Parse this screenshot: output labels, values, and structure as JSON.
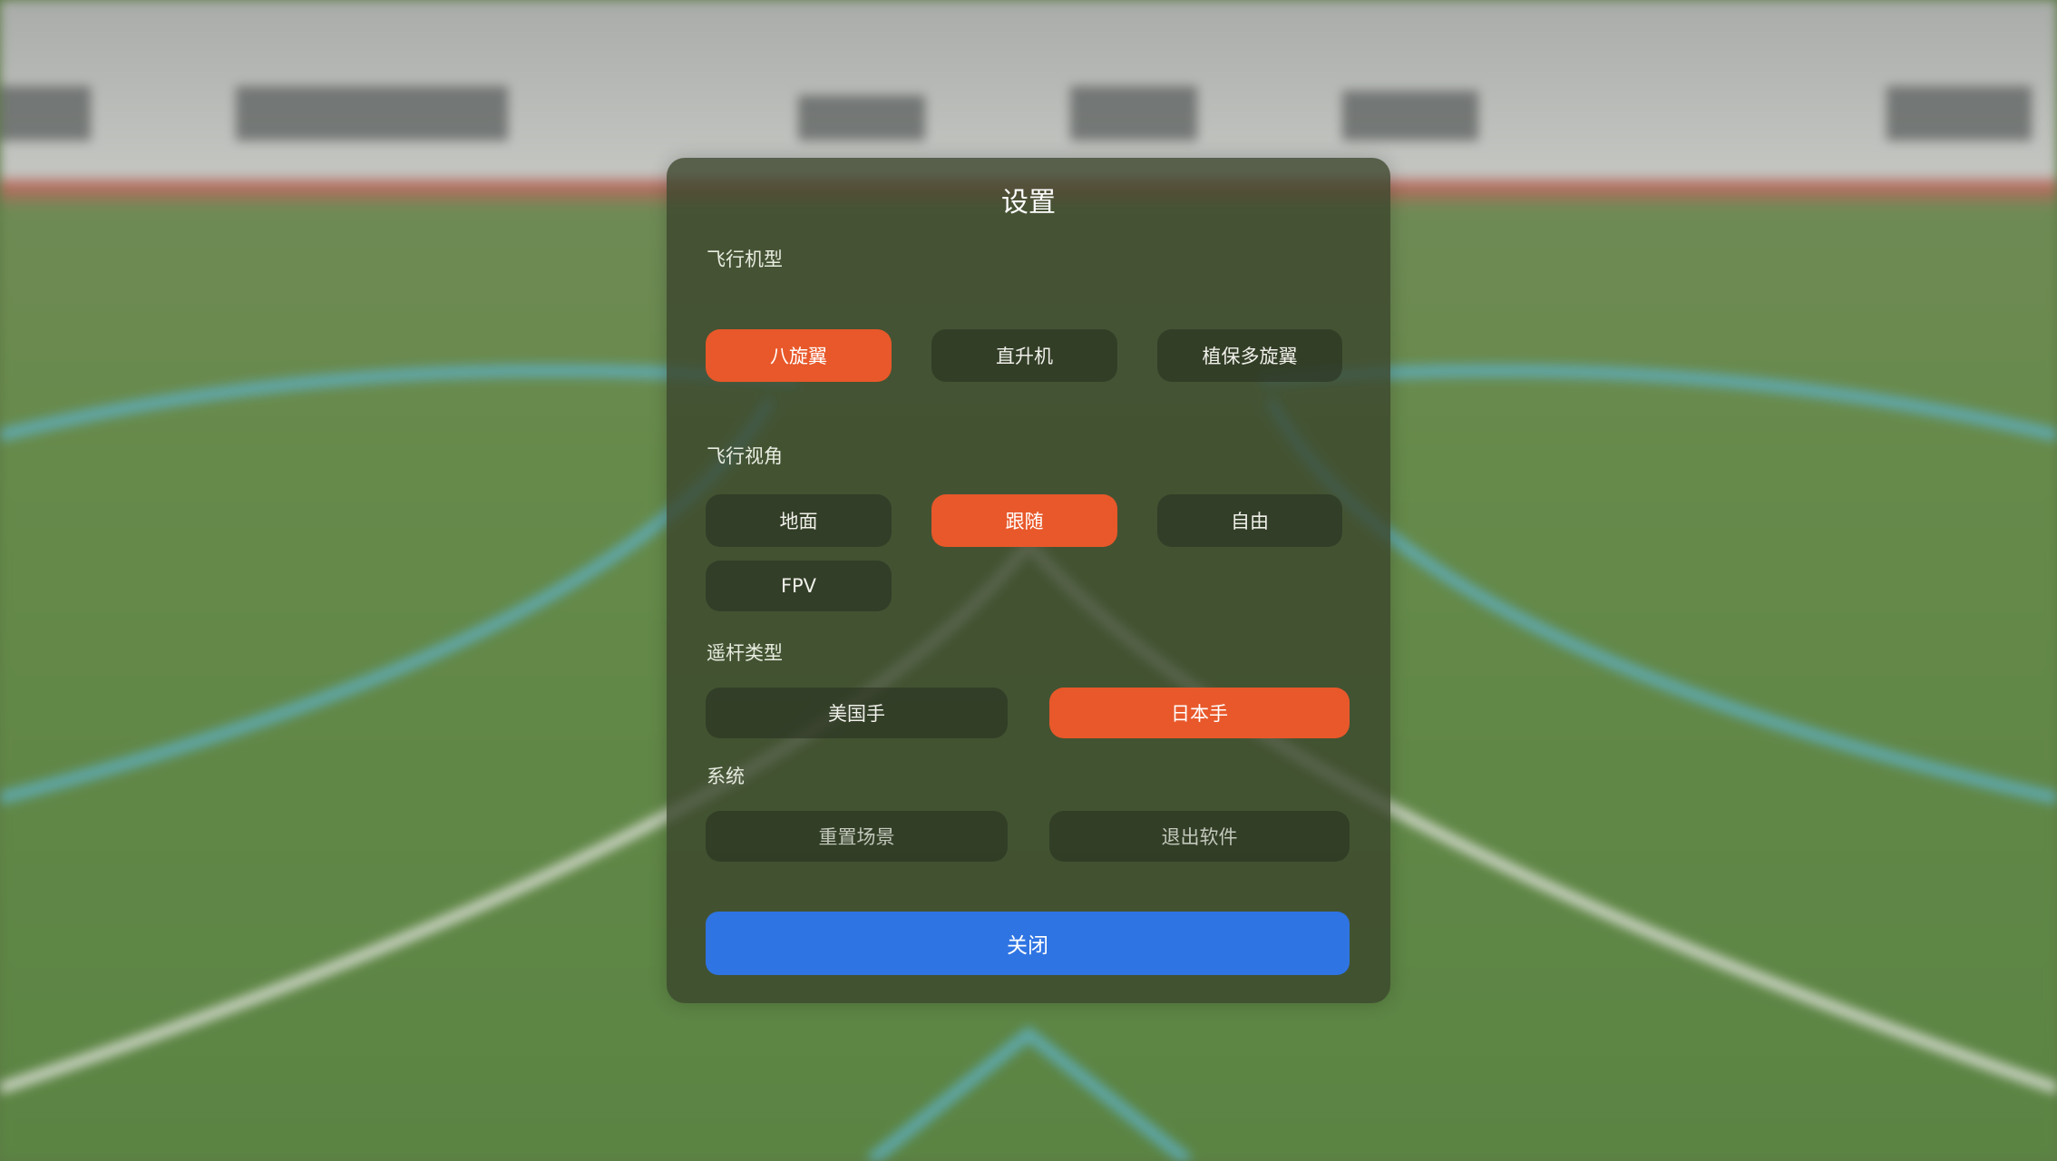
{
  "dialog": {
    "title": "设置",
    "sections": [
      {
        "label": "飞行机型",
        "options": [
          "八旋翼",
          "直升机",
          "植保多旋翼"
        ],
        "selected": "八旋翼"
      },
      {
        "label": "飞行视角",
        "options": [
          "地面",
          "跟随",
          "自由",
          "FPV"
        ],
        "selected": "跟随"
      },
      {
        "label": "遥杆类型",
        "options": [
          "美国手",
          "日本手"
        ],
        "selected": "日本手"
      },
      {
        "label": "系统",
        "options": [
          "重置场景",
          "退出软件"
        ]
      }
    ],
    "close_label": "关闭"
  },
  "colors": {
    "accent": "#e8582a",
    "primary": "#2f74e3"
  }
}
